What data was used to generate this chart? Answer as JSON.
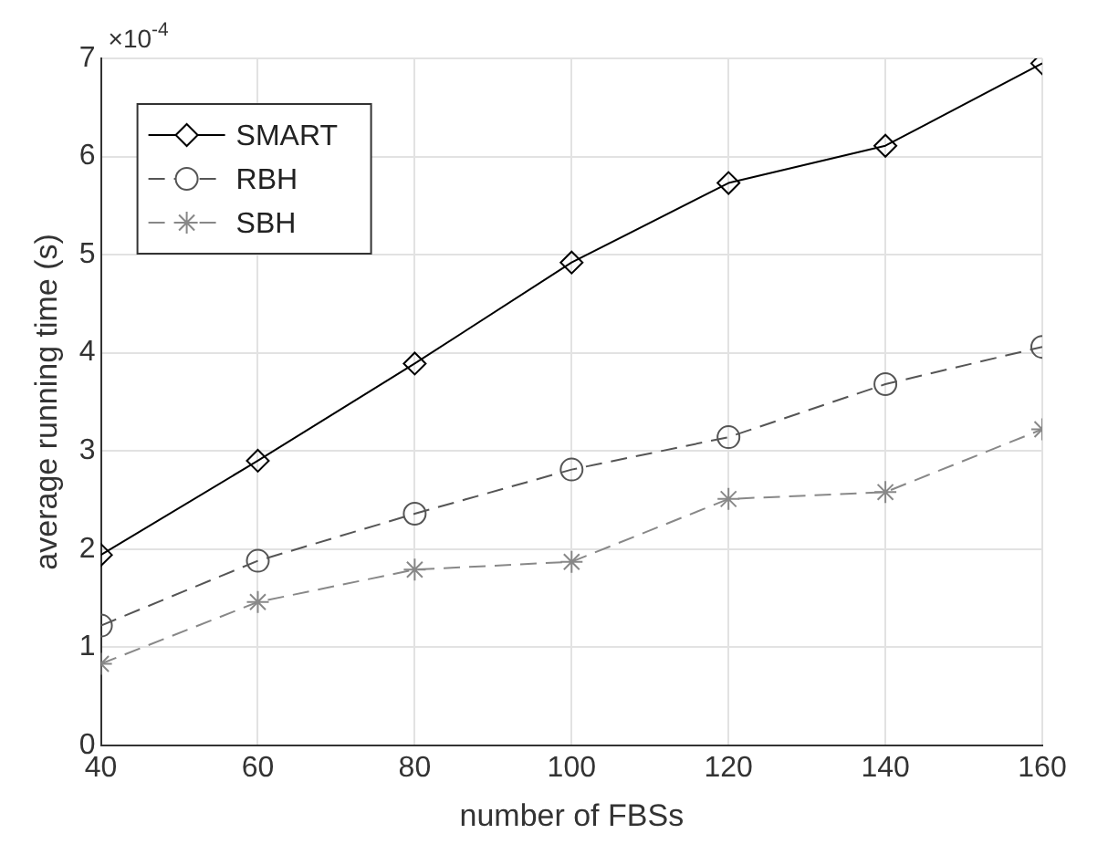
{
  "chart_data": {
    "type": "line",
    "xlabel": "number of FBSs",
    "ylabel": "average running time (s)",
    "x": [
      40,
      60,
      80,
      100,
      120,
      140,
      160
    ],
    "series": [
      {
        "name": "SMART",
        "color": "#000000",
        "marker": "diamond",
        "line_style": "solid",
        "values": [
          1.94,
          2.9,
          3.89,
          4.92,
          5.73,
          6.11,
          6.95
        ]
      },
      {
        "name": "RBH",
        "color": "#555555",
        "marker": "circle",
        "line_style": "dashed",
        "values": [
          1.22,
          1.88,
          2.36,
          2.81,
          3.14,
          3.68,
          4.06
        ]
      },
      {
        "name": "SBH",
        "color": "#888888",
        "marker": "cross",
        "line_style": "dashed",
        "values": [
          0.83,
          1.46,
          1.79,
          1.87,
          2.51,
          2.58,
          3.22
        ]
      }
    ],
    "xlim": [
      40,
      160
    ],
    "xticks": [
      40,
      60,
      80,
      100,
      120,
      140,
      160
    ],
    "ylim": [
      0,
      7
    ],
    "yticks": [
      0,
      1,
      2,
      3,
      4,
      5,
      6,
      7
    ],
    "grid": true,
    "legend": "top left",
    "annotations": [
      "×10$^{-4}$"
    ]
  }
}
